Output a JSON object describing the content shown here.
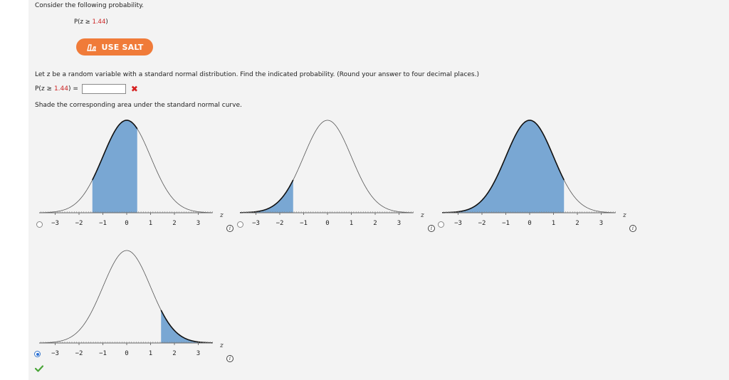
{
  "problem": {
    "intro": "Consider the following probability.",
    "expr_prefix": "P(z ≥ ",
    "expr_value": "1.44",
    "expr_suffix": ")"
  },
  "salt_button": {
    "label": "USE SALT",
    "color": "#f07b39"
  },
  "question": {
    "instruction": "Let z be a random variable with a standard normal distribution. Find the indicated probability. (Round your answer to four decimal places.)",
    "answer_prefix": "P(z ≥ ",
    "answer_value": "1.44",
    "answer_suffix": ") =",
    "answer_input_value": "",
    "answer_status": "incorrect",
    "shade_instruction": "Shade the corresponding area under the standard normal curve."
  },
  "graphs": {
    "axis_label": "z",
    "tick_labels": [
      "−3",
      "−2",
      "−1",
      "0",
      "1",
      "2",
      "3"
    ],
    "shade_color": "#79a7d3",
    "options": [
      {
        "id": "A",
        "shade_from": -1.44,
        "shade_to": 0.44,
        "selected": false
      },
      {
        "id": "B",
        "shade_from": -4,
        "shade_to": -1.44,
        "selected": false
      },
      {
        "id": "C",
        "shade_from": -4,
        "shade_to": 1.44,
        "selected": false
      },
      {
        "id": "D",
        "shade_from": 1.44,
        "shade_to": 4,
        "selected": true
      }
    ],
    "selected_status": "correct"
  },
  "icons": {
    "salt": "salt-shaker-icon",
    "incorrect": "x-mark-icon",
    "correct": "check-mark-icon",
    "info": "info-icon"
  }
}
